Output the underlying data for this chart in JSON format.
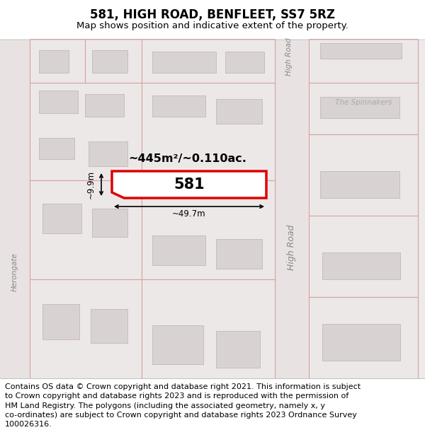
{
  "title": "581, HIGH ROAD, BENFLEET, SS7 5RZ",
  "subtitle": "Map shows position and indicative extent of the property.",
  "footer_lines": [
    "Contains OS data © Crown copyright and database right 2021. This information is subject",
    "to Crown copyright and database rights 2023 and is reproduced with the permission of",
    "HM Land Registry. The polygons (including the associated geometry, namely x, y",
    "co-ordinates) are subject to Crown copyright and database rights 2023 Ordnance Survey",
    "100026316."
  ],
  "title_fontsize": 12,
  "subtitle_fontsize": 9.5,
  "footer_fontsize": 8,
  "map_bg": "#f2eeee",
  "road_color": "#e0d8d8",
  "plot_color": "#dd0000",
  "plot_fill": "#ffffff",
  "building_fill": "#d8d2d2",
  "building_edge": "#bfb0b0",
  "property_fill": "#ede8e8",
  "property_edge": "#d8a0a0",
  "plot_label": "581",
  "area_label": "~445m²/~0.110ac.",
  "width_label": "~49.7m",
  "height_label": "~9.9m",
  "road_label_high_road_top": "High Road",
  "road_label_high_road_right": "High Road",
  "road_label_herongate": "Herongate",
  "place_label": "The Spinnakers"
}
